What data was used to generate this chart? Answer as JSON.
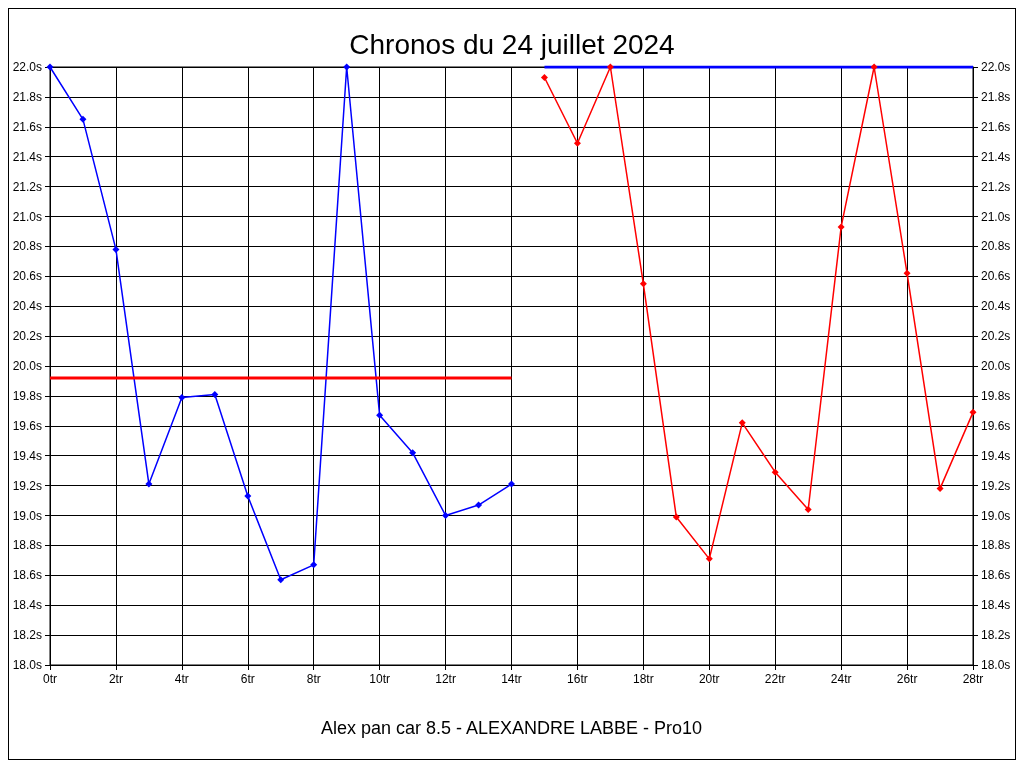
{
  "chart_data": {
    "type": "line",
    "title": "Chronos du 24 juillet 2024",
    "annotations": [
      "Alex pan car 8.5 - ALEXANDRE LABBE - Pro10"
    ],
    "xlim": [
      0,
      28
    ],
    "xticks": [
      {
        "value": 0,
        "label": "0tr"
      },
      {
        "value": 2,
        "label": "2tr"
      },
      {
        "value": 4,
        "label": "4tr"
      },
      {
        "value": 6,
        "label": "6tr"
      },
      {
        "value": 8,
        "label": "8tr"
      },
      {
        "value": 10,
        "label": "10tr"
      },
      {
        "value": 12,
        "label": "12tr"
      },
      {
        "value": 14,
        "label": "14tr"
      },
      {
        "value": 16,
        "label": "16tr"
      },
      {
        "value": 18,
        "label": "18tr"
      },
      {
        "value": 20,
        "label": "20tr"
      },
      {
        "value": 22,
        "label": "22tr"
      },
      {
        "value": 24,
        "label": "24tr"
      },
      {
        "value": 26,
        "label": "26tr"
      },
      {
        "value": 28,
        "label": "28tr"
      }
    ],
    "ylim": [
      18,
      22
    ],
    "yticks": [
      {
        "value": 18,
        "label": "18.0s"
      },
      {
        "value": 18.2,
        "label": "18.2s"
      },
      {
        "value": 18.4,
        "label": "18.4s"
      },
      {
        "value": 18.6,
        "label": "18.6s"
      },
      {
        "value": 18.8,
        "label": "18.8s"
      },
      {
        "value": 19,
        "label": "19.0s"
      },
      {
        "value": 19.2,
        "label": "19.2s"
      },
      {
        "value": 19.4,
        "label": "19.4s"
      },
      {
        "value": 19.6,
        "label": "19.6s"
      },
      {
        "value": 19.8,
        "label": "19.8s"
      },
      {
        "value": 20,
        "label": "20.0s"
      },
      {
        "value": 20.2,
        "label": "20.2s"
      },
      {
        "value": 20.4,
        "label": "20.4s"
      },
      {
        "value": 20.6,
        "label": "20.6s"
      },
      {
        "value": 20.8,
        "label": "20.8s"
      },
      {
        "value": 21,
        "label": "21.0s"
      },
      {
        "value": 21.2,
        "label": "21.2s"
      },
      {
        "value": 21.4,
        "label": "21.4s"
      },
      {
        "value": 21.6,
        "label": "21.6s"
      },
      {
        "value": 21.8,
        "label": "21.8s"
      },
      {
        "value": 22,
        "label": "22.0s"
      }
    ],
    "y2lim": [
      18,
      22
    ],
    "y2ticks": [
      {
        "value": 18,
        "label": "18.0s"
      },
      {
        "value": 18.2,
        "label": "18.2s"
      },
      {
        "value": 18.4,
        "label": "18.4s"
      },
      {
        "value": 18.6,
        "label": "18.6s"
      },
      {
        "value": 18.8,
        "label": "18.8s"
      },
      {
        "value": 19,
        "label": "19.0s"
      },
      {
        "value": 19.2,
        "label": "19.2s"
      },
      {
        "value": 19.4,
        "label": "19.4s"
      },
      {
        "value": 19.6,
        "label": "19.6s"
      },
      {
        "value": 19.8,
        "label": "19.8s"
      },
      {
        "value": 20,
        "label": "20.0s"
      },
      {
        "value": 20.2,
        "label": "20.2s"
      },
      {
        "value": 20.4,
        "label": "20.4s"
      },
      {
        "value": 20.6,
        "label": "20.6s"
      },
      {
        "value": 20.8,
        "label": "20.8s"
      },
      {
        "value": 21,
        "label": "21.0s"
      },
      {
        "value": 21.2,
        "label": "21.2s"
      },
      {
        "value": 21.4,
        "label": "21.4s"
      },
      {
        "value": 21.6,
        "label": "21.6s"
      },
      {
        "value": 21.8,
        "label": "21.8s"
      },
      {
        "value": 22,
        "label": "22.0s"
      }
    ],
    "grid": true,
    "marker": "diamond",
    "line_style": "solid",
    "series": [
      {
        "color": "#0000ff",
        "x": [
          0,
          1,
          2,
          3,
          4,
          5,
          6,
          7,
          8,
          9,
          10,
          11,
          12,
          13,
          14
        ],
        "values": [
          22.0,
          21.65,
          20.78,
          19.21,
          19.79,
          19.81,
          19.13,
          18.57,
          18.67,
          22.0,
          19.67,
          19.42,
          19.0,
          19.07,
          19.21
        ]
      },
      {
        "color": "#ff0000",
        "x": [
          15,
          16,
          17,
          18,
          19,
          20,
          21,
          22,
          23,
          24,
          25,
          26,
          27,
          28
        ],
        "values": [
          21.93,
          21.49,
          22.0,
          20.55,
          18.99,
          18.71,
          19.62,
          19.29,
          19.04,
          20.93,
          22.0,
          20.62,
          19.18,
          19.69
        ]
      },
      {
        "color": "#ff0000",
        "marker": "none",
        "x": [
          0,
          14
        ],
        "values": [
          19.92,
          19.92
        ]
      },
      {
        "color": "#0000ff",
        "marker": "none",
        "x": [
          15,
          28
        ],
        "values": [
          22.0,
          22.0
        ]
      }
    ]
  }
}
